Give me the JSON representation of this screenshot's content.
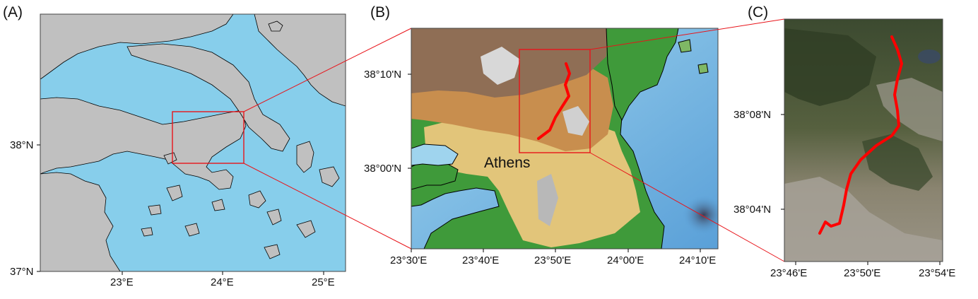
{
  "panels": [
    {
      "id": "A",
      "letter": "(A)",
      "x_ticks": [
        "23°E",
        "24°E",
        "25°E"
      ],
      "y_ticks": [
        "38°N",
        "37°N"
      ]
    },
    {
      "id": "B",
      "letter": "(B)",
      "place_label": "Athens",
      "x_ticks": [
        "23°30'E",
        "23°40'E",
        "23°50'E",
        "24°00'E",
        "24°10'E"
      ],
      "y_ticks": [
        "38°10'N",
        "38°00'N"
      ]
    },
    {
      "id": "C",
      "letter": "(C)",
      "x_ticks": [
        "23°46'E",
        "23°50'E",
        "23°54'E"
      ],
      "y_ticks": [
        "38°08'N",
        "38°04'N"
      ]
    }
  ],
  "colors": {
    "land": "#c0c0c0",
    "sea": "#87ceeb",
    "route": "#ff0000",
    "zoom_box": "#e8141a"
  }
}
